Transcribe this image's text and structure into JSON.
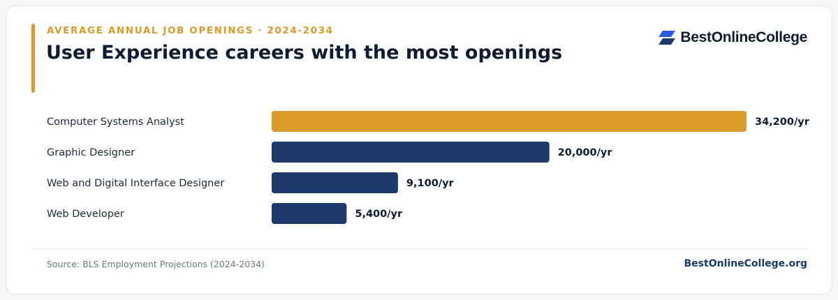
{
  "header": {
    "eyebrow": "AVERAGE ANNUAL JOB OPENINGS · 2024-2034",
    "title": "User Experience careers with the most openings"
  },
  "logo": {
    "text": "BestOnlineCollege",
    "icon": "stacked-parallelogram-logo-icon"
  },
  "footer": {
    "source": "Source: BLS Employment Projections (2024-2034)",
    "site": "BestOnlineCollege.org"
  },
  "colors": {
    "accent": "#db9a2a",
    "navy": "#1b3a6b",
    "logo_blue": "#2b5ce6",
    "text_dark": "#0d1b33"
  },
  "chart_data": {
    "type": "bar",
    "orientation": "horizontal",
    "title": "User Experience careers with the most openings",
    "categories": [
      "Computer Systems Analyst",
      "Graphic Designer",
      "Web and Digital Interface Designer",
      "Web Developer"
    ],
    "values": [
      34200,
      20000,
      9100,
      5400
    ],
    "value_labels": [
      "34,200/yr",
      "20,000/yr",
      "9,100/yr",
      "5,400/yr"
    ],
    "highlight_index": 0,
    "xlim": [
      0,
      34200
    ],
    "grid": false,
    "legend": "none"
  }
}
